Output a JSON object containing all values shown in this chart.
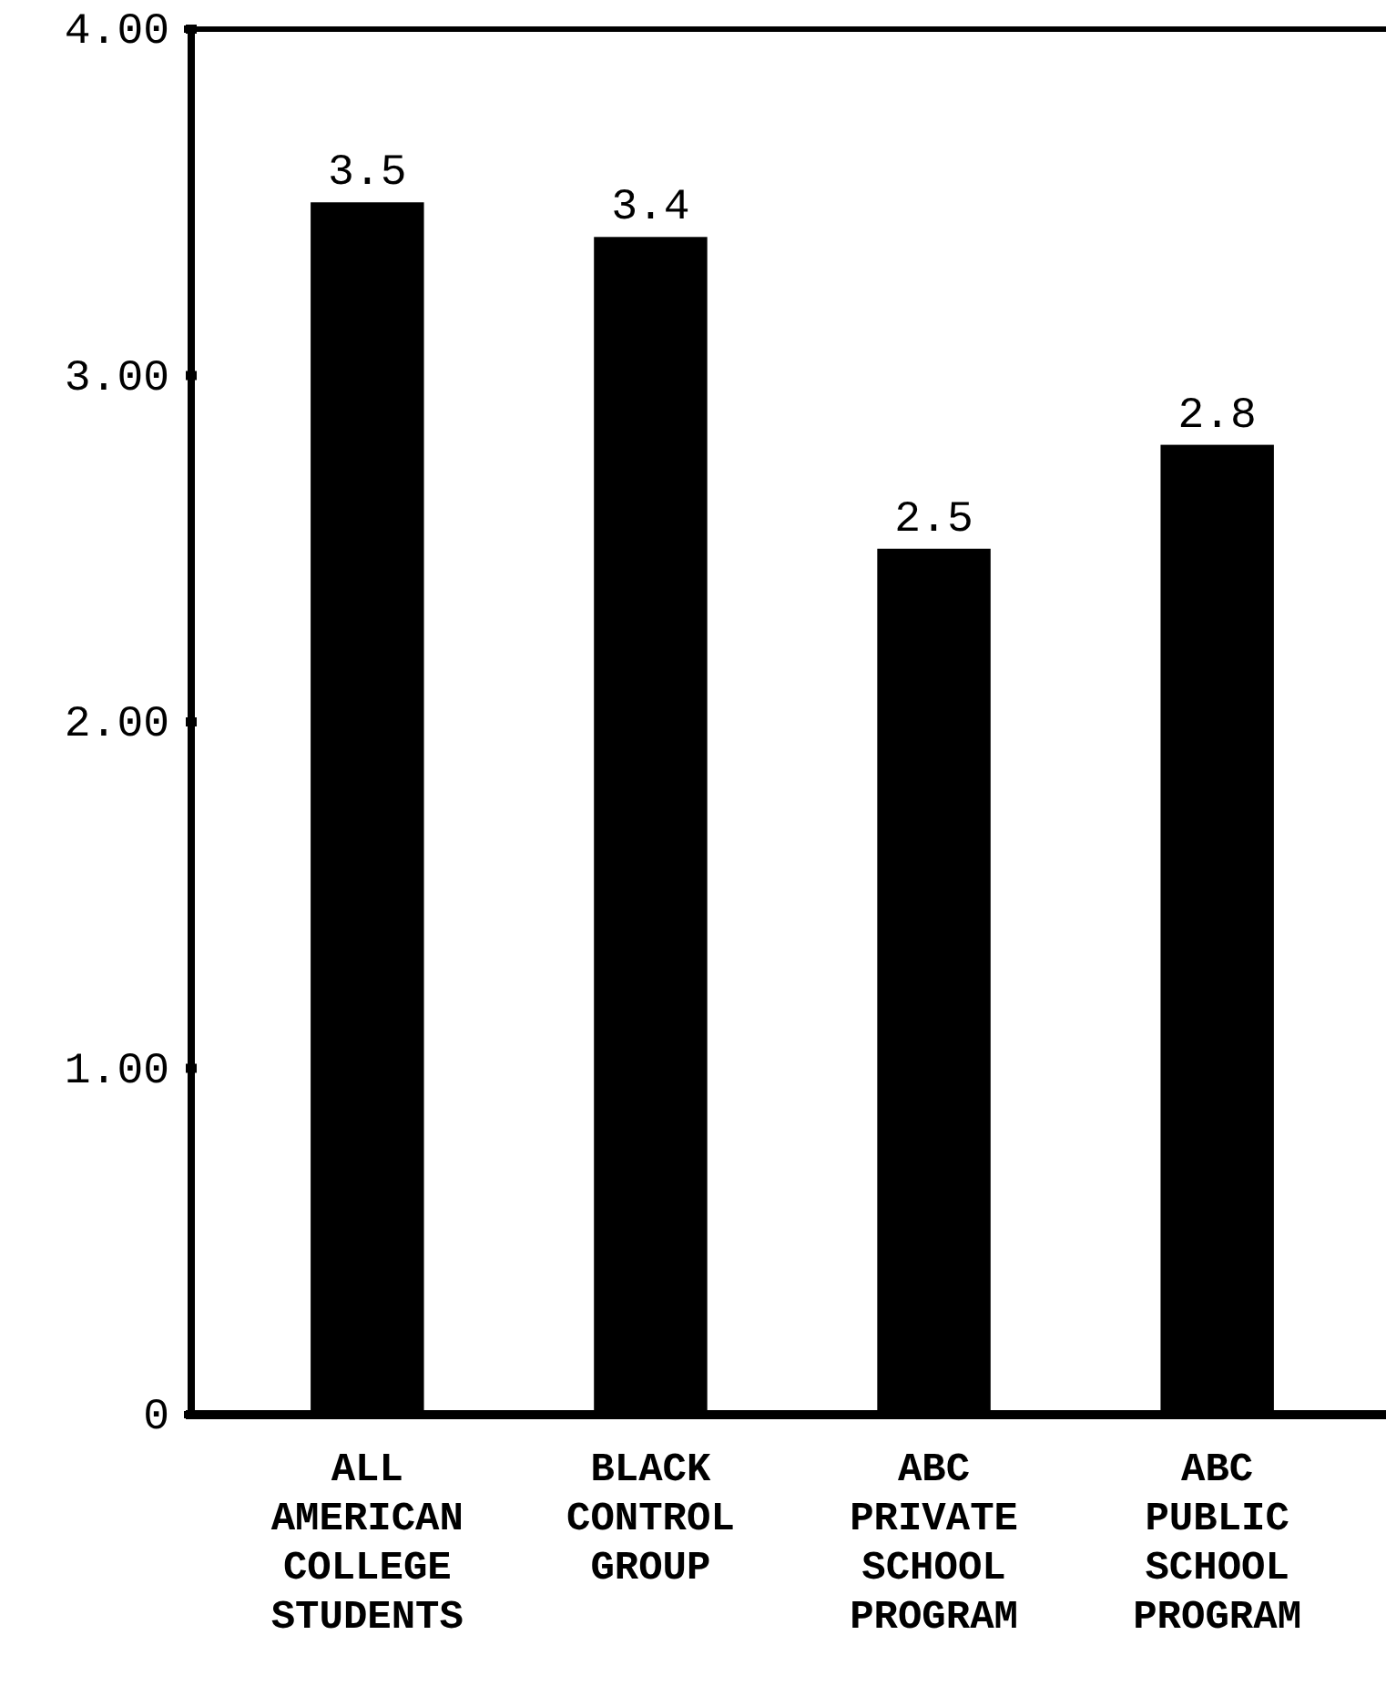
{
  "chart_data": {
    "type": "bar",
    "categories": [
      "ALL AMERICAN COLLEGE STUDENTS",
      "BLACK CONTROL GROUP",
      "ABC PRIVATE SCHOOL PROGRAM",
      "ABC PUBLIC SCHOOL PROGRAM"
    ],
    "values": [
      3.5,
      3.4,
      2.5,
      2.8
    ],
    "color": "#000000",
    "ylim": [
      0,
      4
    ],
    "yticks": [
      {
        "value": 0,
        "label": "0"
      },
      {
        "value": 1,
        "label": "1.00"
      },
      {
        "value": 2,
        "label": "2.00"
      },
      {
        "value": 3,
        "label": "3.00"
      },
      {
        "value": 4,
        "label": "4.00"
      }
    ],
    "data_labels": true,
    "grid": false
  }
}
